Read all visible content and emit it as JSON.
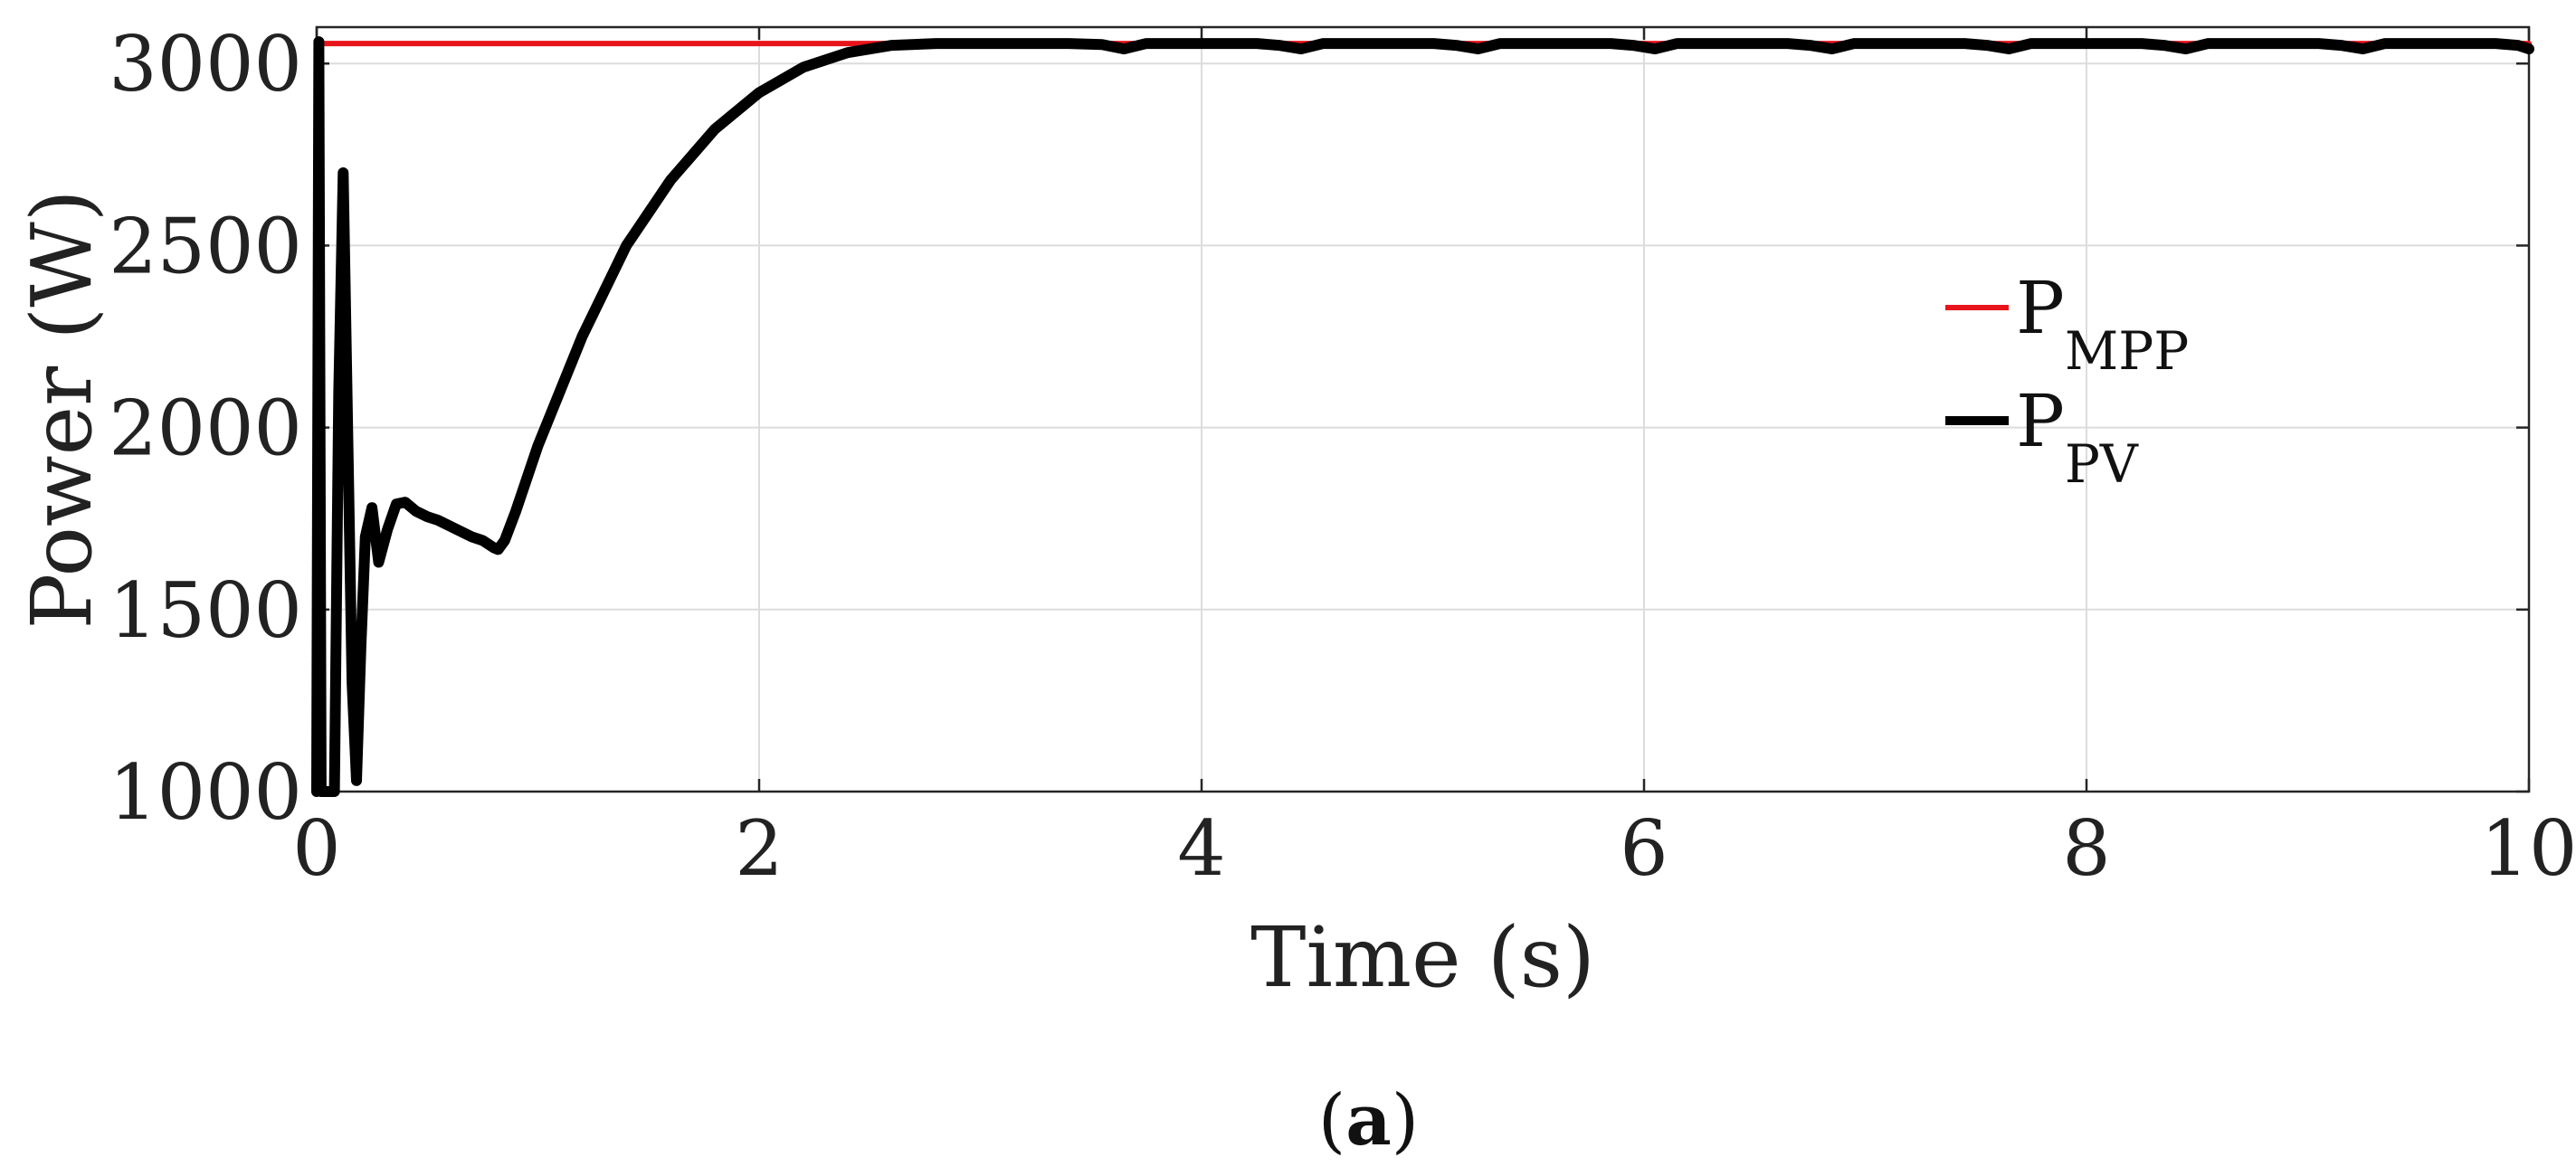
{
  "caption": {
    "open": "(",
    "letter": "a",
    "close": ")"
  },
  "chart_data": {
    "type": "line",
    "title": "",
    "xlabel": "Time (s)",
    "ylabel": "Power (W)",
    "xlim": [
      0,
      10
    ],
    "ylim": [
      1000,
      3100
    ],
    "xticks": [
      0,
      2,
      4,
      6,
      8,
      10
    ],
    "yticks": [
      1000,
      1500,
      2000,
      2500,
      3000
    ],
    "grid": true,
    "legend_position": "right",
    "series": [
      {
        "name": "P_MPP",
        "label_main": "P",
        "label_sub": "MPP",
        "color": "#e8141c",
        "x": [
          0,
          10
        ],
        "y": [
          3055,
          3055
        ]
      },
      {
        "name": "P_PV",
        "label_main": "P",
        "label_sub": "PV",
        "color": "#000000",
        "x": [
          0,
          0.01,
          0.02,
          0.03,
          0.04,
          0.08,
          0.1,
          0.12,
          0.14,
          0.16,
          0.18,
          0.2,
          0.22,
          0.25,
          0.28,
          0.32,
          0.36,
          0.4,
          0.45,
          0.5,
          0.55,
          0.6,
          0.65,
          0.7,
          0.75,
          0.8,
          0.82,
          0.85,
          0.9,
          1.0,
          1.2,
          1.4,
          1.6,
          1.8,
          2.0,
          2.2,
          2.4,
          2.6,
          2.8,
          3.0,
          3.2,
          3.4,
          3.55,
          3.65,
          3.75,
          4.0,
          4.25,
          4.35,
          4.45,
          4.55,
          4.8,
          5.05,
          5.15,
          5.25,
          5.35,
          5.6,
          5.85,
          5.95,
          6.05,
          6.15,
          6.4,
          6.65,
          6.75,
          6.85,
          6.95,
          7.2,
          7.45,
          7.55,
          7.65,
          7.75,
          8.0,
          8.25,
          8.35,
          8.45,
          8.55,
          8.8,
          9.05,
          9.15,
          9.25,
          9.35,
          9.6,
          9.85,
          9.95,
          10.0
        ],
        "y": [
          1000,
          3060,
          1000,
          1000,
          1000,
          1000,
          2100,
          2700,
          2000,
          1300,
          1030,
          1400,
          1700,
          1780,
          1630,
          1720,
          1790,
          1795,
          1770,
          1755,
          1745,
          1730,
          1715,
          1700,
          1690,
          1670,
          1665,
          1690,
          1770,
          1950,
          2250,
          2500,
          2680,
          2820,
          2920,
          2990,
          3030,
          3050,
          3055,
          3055,
          3055,
          3055,
          3052,
          3040,
          3055,
          3055,
          3055,
          3050,
          3040,
          3055,
          3055,
          3055,
          3050,
          3040,
          3055,
          3055,
          3055,
          3050,
          3040,
          3055,
          3055,
          3055,
          3050,
          3040,
          3055,
          3055,
          3055,
          3050,
          3040,
          3055,
          3055,
          3055,
          3050,
          3040,
          3055,
          3055,
          3055,
          3050,
          3040,
          3055,
          3055,
          3055,
          3050,
          3040
        ]
      }
    ]
  }
}
